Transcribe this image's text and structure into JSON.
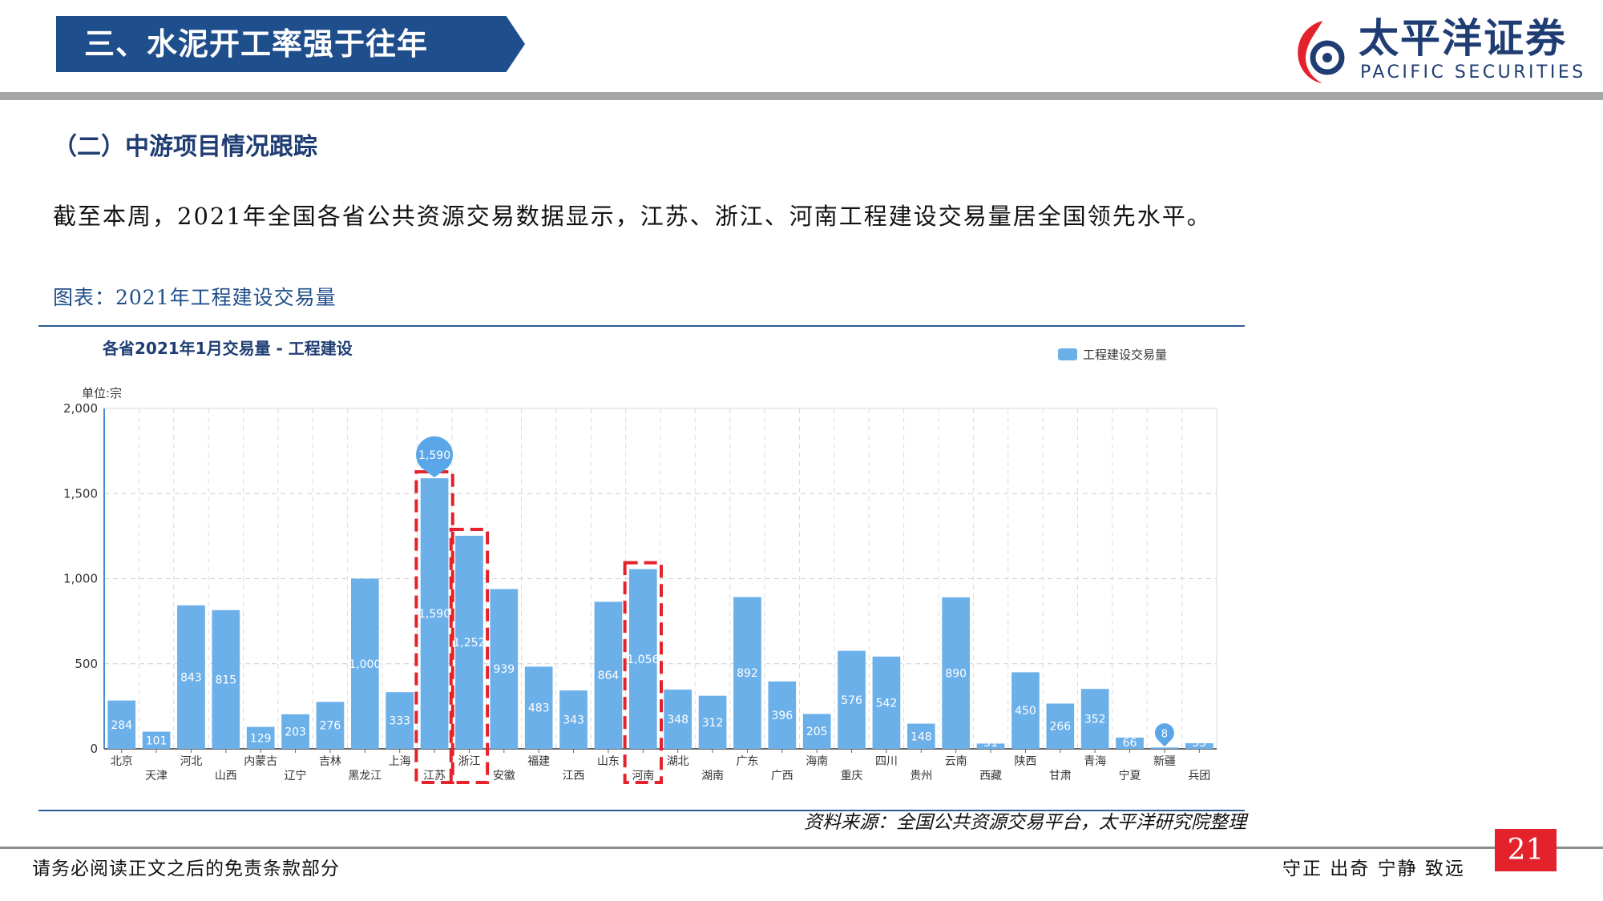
{
  "header": {
    "title": "三、水泥开工率强于往年"
  },
  "logo": {
    "name_cn": "太平洋证券",
    "name_en": "PACIFIC SECURITIES",
    "brand_color": "#1f3d73",
    "accent_color": "#e3222c"
  },
  "section": {
    "title": "（二）中游项目情况跟踪"
  },
  "body": {
    "text": "截至本周，2021年全国各省公共资源交易数据显示，江苏、浙江、河南工程建设交易量居全国领先水平。"
  },
  "figure": {
    "caption": "图表：2021年工程建设交易量",
    "source": "资料来源：全国公共资源交易平台，太平洋研究院整理"
  },
  "chart_data": {
    "type": "bar",
    "title": "各省2021年1月交易量 - 工程建设",
    "unit_label": "单位:宗",
    "legend": "工程建设交易量",
    "legend_position": "top-right",
    "ylim": [
      0,
      2000
    ],
    "y_ticks": [
      "0",
      "500",
      "1,000",
      "1,500",
      "2,000"
    ],
    "grid": true,
    "bar_color": "#6cb0ea",
    "highlight_color": "#e3222c",
    "categories": [
      "北京",
      "天津",
      "河北",
      "山西",
      "内蒙古",
      "辽宁",
      "吉林",
      "黑龙江",
      "上海",
      "江苏",
      "浙江",
      "安徽",
      "福建",
      "江西",
      "山东",
      "河南",
      "湖北",
      "湖南",
      "广东",
      "广西",
      "海南",
      "重庆",
      "四川",
      "贵州",
      "云南",
      "西藏",
      "陕西",
      "甘肃",
      "青海",
      "宁夏",
      "新疆",
      "兵团"
    ],
    "values": [
      284,
      101,
      843,
      815,
      129,
      203,
      276,
      1000,
      333,
      1590,
      1252,
      939,
      483,
      343,
      864,
      1056,
      348,
      312,
      892,
      396,
      205,
      576,
      542,
      148,
      890,
      31,
      450,
      266,
      352,
      66,
      8,
      33
    ],
    "value_labels": [
      "284",
      "101",
      "843",
      "815",
      "129",
      "203",
      "276",
      "1,000",
      "333",
      "1,590",
      "1,252",
      "939",
      "483",
      "343",
      "864",
      "1,056",
      "348",
      "312",
      "892",
      "396",
      "205",
      "576",
      "542",
      "148",
      "890",
      "31",
      "450",
      "266",
      "352",
      "66",
      "8",
      "33"
    ],
    "highlighted": [
      "江苏",
      "浙江",
      "河南"
    ],
    "max_marker": {
      "category": "江苏",
      "label": "1,590"
    },
    "min_marker": {
      "category": "新疆",
      "label": "8"
    }
  },
  "footer": {
    "disclaimer": "请务必阅读正文之后的免责条款部分",
    "motto": "守正 出奇 宁静 致远",
    "page_number": "21"
  }
}
